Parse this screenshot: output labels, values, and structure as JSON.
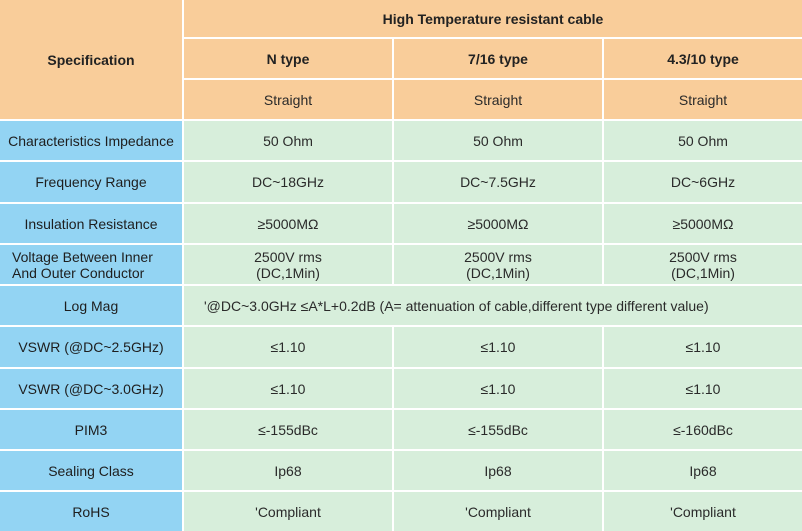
{
  "header": {
    "spec_label": "Specification",
    "group_title": "High Temperature resistant cable",
    "types": [
      "N type",
      "7/16 type",
      "4.3/10 type"
    ],
    "connectors": [
      "Straight",
      "Straight",
      "Straight"
    ]
  },
  "rows": [
    {
      "label": "Characteristics Impedance",
      "values": [
        "50 Ohm",
        "50 Ohm",
        "50 Ohm"
      ]
    },
    {
      "label": "Frequency Range",
      "values": [
        "DC~18GHz",
        "DC~7.5GHz",
        "DC~6GHz"
      ]
    },
    {
      "label": "Insulation Resistance",
      "values": [
        "≥5000MΩ",
        "≥5000MΩ",
        "≥5000MΩ"
      ]
    },
    {
      "label_lines": [
        "Voltage Between Inner",
        "And Outer Conductor"
      ],
      "value_lines": [
        [
          "2500V rms",
          "(DC,1Min)"
        ],
        [
          "2500V rms",
          "(DC,1Min)"
        ],
        [
          "2500V rms",
          "(DC,1Min)"
        ]
      ]
    },
    {
      "label": "Log Mag",
      "span_value": "'@DC~3.0GHz  ≤A*L+0.2dB (A= attenuation of cable,different type different value)"
    },
    {
      "label": "VSWR (@DC~2.5GHz)",
      "values": [
        "≤1.10",
        "≤1.10",
        "≤1.10"
      ]
    },
    {
      "label": "VSWR (@DC~3.0GHz)",
      "values": [
        "≤1.10",
        "≤1.10",
        "≤1.10"
      ]
    },
    {
      "label": "PIM3",
      "values": [
        "≤-155dBc",
        "≤-155dBc",
        "≤-160dBc"
      ]
    },
    {
      "label": "Sealing Class",
      "values": [
        "Ip68",
        "Ip68",
        "Ip68"
      ]
    },
    {
      "label": "RoHS",
      "values": [
        "'Compliant",
        "'Compliant",
        "'Compliant"
      ]
    }
  ]
}
